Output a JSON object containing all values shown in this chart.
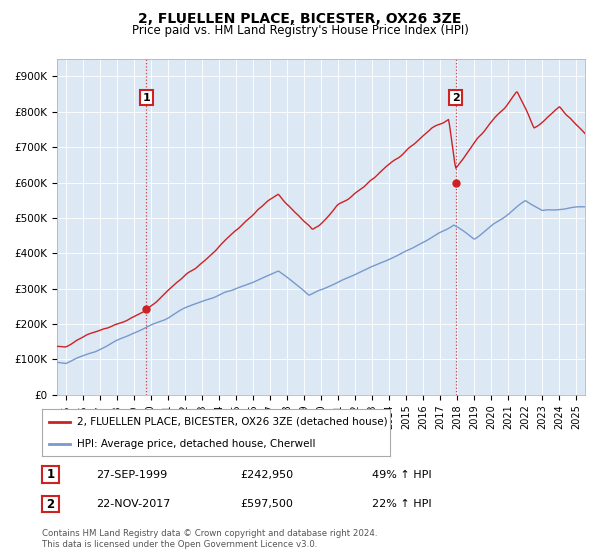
{
  "title": "2, FLUELLEN PLACE, BICESTER, OX26 3ZE",
  "subtitle": "Price paid vs. HM Land Registry's House Price Index (HPI)",
  "ylim": [
    0,
    950000
  ],
  "yticks": [
    0,
    100000,
    200000,
    300000,
    400000,
    500000,
    600000,
    700000,
    800000,
    900000
  ],
  "ytick_labels": [
    "£0",
    "£100K",
    "£200K",
    "£300K",
    "£400K",
    "£500K",
    "£600K",
    "£700K",
    "£800K",
    "£900K"
  ],
  "sale1": {
    "date_num": 1999.74,
    "price": 242950,
    "label": "1"
  },
  "sale2": {
    "date_num": 2017.9,
    "price": 597500,
    "label": "2"
  },
  "hpi_line_color": "#7799cc",
  "price_line_color": "#cc2222",
  "vline_color": "#cc4444",
  "chart_bg_color": "#dde8f5",
  "background_color": "#ffffff",
  "grid_color": "#ffffff",
  "legend_label_price": "2, FLUELLEN PLACE, BICESTER, OX26 3ZE (detached house)",
  "legend_label_hpi": "HPI: Average price, detached house, Cherwell",
  "table_row1": [
    "1",
    "27-SEP-1999",
    "£242,950",
    "49% ↑ HPI"
  ],
  "table_row2": [
    "2",
    "22-NOV-2017",
    "£597,500",
    "22% ↑ HPI"
  ],
  "footnote": "Contains HM Land Registry data © Crown copyright and database right 2024.\nThis data is licensed under the Open Government Licence v3.0.",
  "xmin": 1994.5,
  "xmax": 2025.5
}
